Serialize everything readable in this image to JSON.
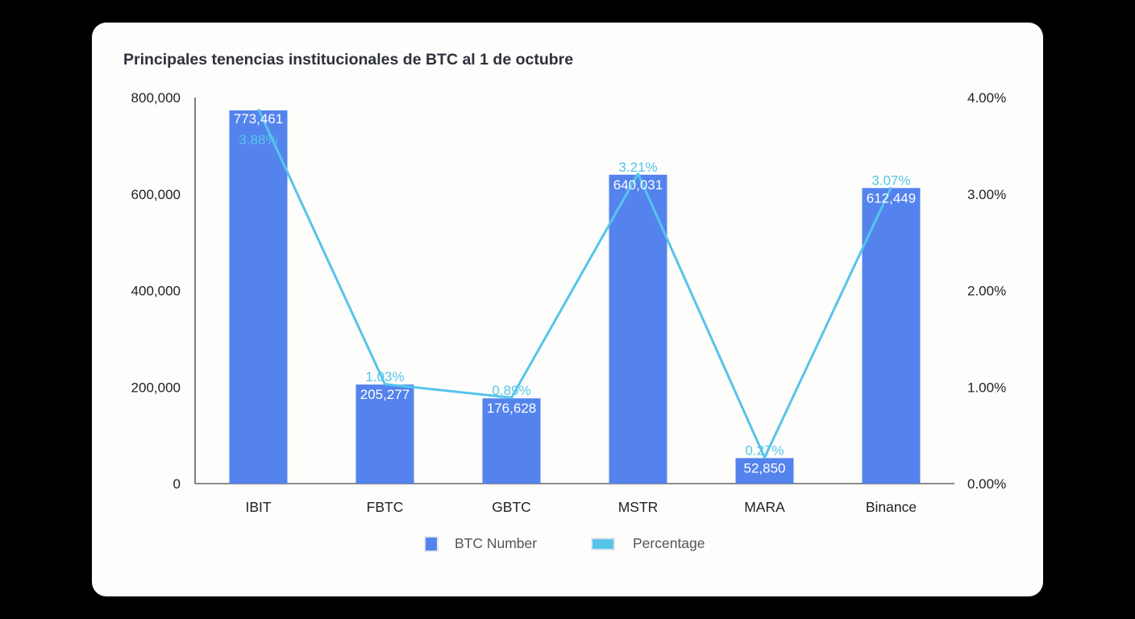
{
  "chart_data": {
    "type": "bar",
    "title": "Principales tenencias institucionales de BTC al 1 de octubre",
    "categories": [
      "IBIT",
      "FBTC",
      "GBTC",
      "MSTR",
      "MARA",
      "Binance"
    ],
    "series": [
      {
        "name": "BTC Number",
        "type": "bar",
        "axis": "left",
        "color": "#5483ee",
        "values": [
          773461,
          205277,
          176628,
          640031,
          52850,
          612449
        ],
        "labels": [
          "773,461",
          "205,277",
          "176,628",
          "640,031",
          "52,850",
          "612,449"
        ]
      },
      {
        "name": "Percentage",
        "type": "line",
        "axis": "right",
        "color": "#56c4ea",
        "values": [
          3.88,
          1.03,
          0.89,
          3.21,
          0.27,
          3.07
        ],
        "labels": [
          "3.88%",
          "1.03%",
          "0.89%",
          "3.21%",
          "0.27%",
          "3.07%"
        ]
      }
    ],
    "y_left": {
      "ticks": [
        "0",
        "200,000",
        "400,000",
        "600,000",
        "800,000"
      ],
      "range": [
        0,
        800000
      ]
    },
    "y_right": {
      "ticks": [
        "0.00%",
        "1.00%",
        "2.00%",
        "3.00%",
        "4.00%"
      ],
      "range": [
        0,
        4
      ]
    },
    "grid": false,
    "legend_position": "bottom"
  },
  "legend": [
    {
      "label": "BTC Number",
      "color": "#5483ee"
    },
    {
      "label": "Percentage",
      "color": "#56c4ea"
    }
  ]
}
